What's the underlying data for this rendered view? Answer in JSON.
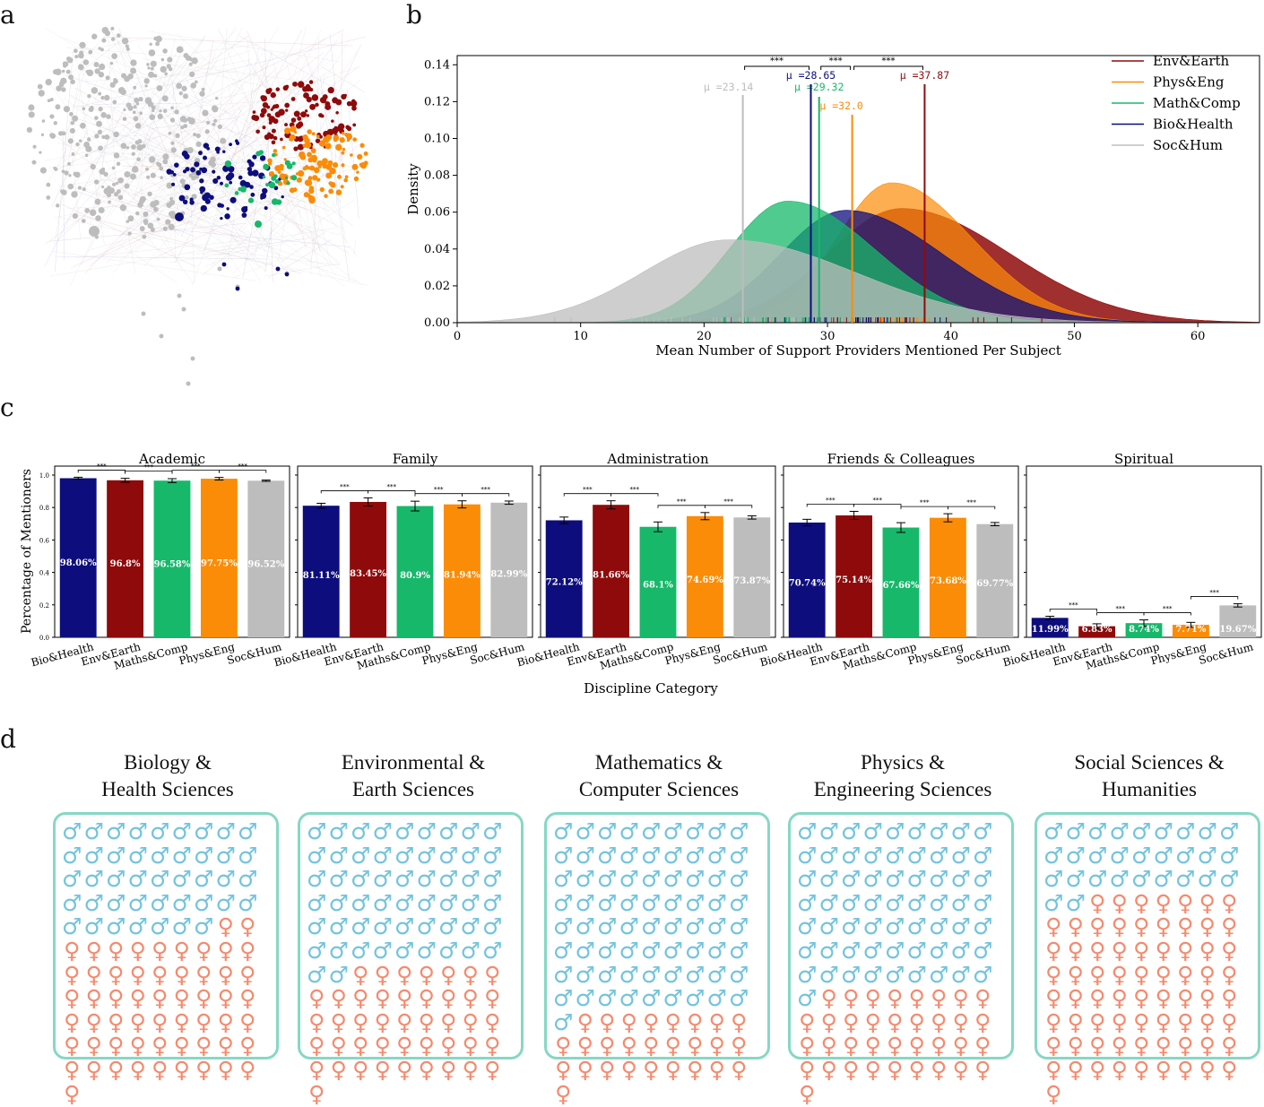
{
  "panel_labels": {
    "a": "a",
    "b": "b",
    "c": "c",
    "d": "d"
  },
  "colors": {
    "bio": "#0d0d7d",
    "env": "#8f0a0a",
    "math": "#17b86a",
    "phys": "#fb8c07",
    "soc": "#bdbdbd",
    "male": "#73c4de",
    "female": "#f58a6e",
    "box_border": "#86d8c4"
  },
  "network": {
    "description_colors": [
      "#bdbdbd",
      "#0d0d7d",
      "#8f0a0a",
      "#fb8c07",
      "#17b86a"
    ]
  },
  "chart_data": [
    {
      "type": "area",
      "panel": "b",
      "xlabel": "Mean Number of Support Providers Mentioned Per Subject",
      "ylabel": "Density",
      "xlim": [
        0,
        65
      ],
      "ylim": [
        0,
        0.145
      ],
      "xticks": [
        0,
        10,
        20,
        30,
        40,
        50,
        60
      ],
      "yticks": [
        "0.00",
        "0.02",
        "0.04",
        "0.06",
        "0.08",
        "0.10",
        "0.12",
        "0.14"
      ],
      "legend_position": "top-right",
      "series": [
        {
          "name": "Env&Earth",
          "key": "env",
          "mean": 37.87,
          "mean_label": "μ =37.87",
          "peak_x": 36,
          "peak_y": 0.062,
          "sd": 7.0
        },
        {
          "name": "Phys&Eng",
          "key": "phys",
          "mean": 32.0,
          "mean_label": "μ =32.0",
          "peak_x": 35.2,
          "peak_y": 0.076,
          "sd": 5.2
        },
        {
          "name": "Math&Comp",
          "key": "math",
          "mean": 29.32,
          "mean_label": "μ =29.32",
          "peak_x": 26.8,
          "peak_y": 0.066,
          "sd": 5.6
        },
        {
          "name": "Bio&Health",
          "key": "bio",
          "mean": 28.65,
          "mean_label": "μ =28.65",
          "peak_x": 31.5,
          "peak_y": 0.061,
          "sd": 6.3
        },
        {
          "name": "Soc&Hum",
          "key": "soc",
          "mean": 23.14,
          "mean_label": "μ =23.14",
          "peak_x": 22,
          "peak_y": 0.045,
          "sd": 8.2
        }
      ],
      "significance": [
        {
          "from": 23.14,
          "to": 28.65,
          "label": "***",
          "level": 0.132
        },
        {
          "from": 29.32,
          "to": 32.0,
          "label": "***",
          "level": 0.132
        },
        {
          "from": 32.0,
          "to": 37.87,
          "label": "***",
          "level": 0.132
        }
      ]
    },
    {
      "type": "bar",
      "panel": "c",
      "xlabel": "Discipline Category",
      "ylabel": "Percentage of Mentioners",
      "categories": [
        "Bio&Health",
        "Env&Earth",
        "Maths&Comp",
        "Phys&Eng",
        "Soc&Hum"
      ],
      "yticks": [
        "0.0",
        "0.2",
        "0.4",
        "0.6",
        "0.8",
        "1.0"
      ],
      "ylim": [
        0,
        1.0
      ],
      "sig_label": "***",
      "subplots": [
        {
          "title": "Academic",
          "values": [
            0.9806,
            0.968,
            0.9658,
            0.9775,
            0.9652
          ],
          "labels": [
            "98.06%",
            "96.8%",
            "96.58%",
            "97.75%",
            "96.52%"
          ],
          "err": [
            0.006,
            0.012,
            0.012,
            0.008,
            0.004
          ],
          "sig_pairs": [
            [
              0,
              1
            ],
            [
              1,
              2
            ],
            [
              2,
              3
            ],
            [
              3,
              4
            ]
          ]
        },
        {
          "title": "Family",
          "values": [
            0.8111,
            0.8345,
            0.809,
            0.8194,
            0.8299
          ],
          "labels": [
            "81.11%",
            "83.45%",
            "80.9%",
            "81.94%",
            "82.99%"
          ],
          "err": [
            0.015,
            0.025,
            0.03,
            0.022,
            0.01
          ],
          "sig_pairs": [
            [
              0,
              1
            ],
            [
              1,
              2
            ],
            [
              2,
              3
            ],
            [
              3,
              4
            ]
          ]
        },
        {
          "title": "Administration",
          "values": [
            0.7212,
            0.8166,
            0.681,
            0.7469,
            0.7387
          ],
          "labels": [
            "72.12%",
            "81.66%",
            "68.1%",
            "74.69%",
            "73.87%"
          ],
          "err": [
            0.02,
            0.025,
            0.03,
            0.022,
            0.01
          ],
          "sig_pairs": [
            [
              0,
              1
            ],
            [
              1,
              2
            ],
            [
              2,
              3
            ],
            [
              3,
              4
            ]
          ]
        },
        {
          "title": "Friends & Colleagues",
          "values": [
            0.7074,
            0.7514,
            0.6766,
            0.7368,
            0.6977
          ],
          "labels": [
            "70.74%",
            "75.14%",
            "67.66%",
            "73.68%",
            "69.77%"
          ],
          "err": [
            0.02,
            0.025,
            0.03,
            0.025,
            0.01
          ],
          "sig_pairs": [
            [
              0,
              1
            ],
            [
              1,
              2
            ],
            [
              2,
              3
            ],
            [
              3,
              4
            ]
          ]
        },
        {
          "title": "Spiritual",
          "values": [
            0.1199,
            0.0683,
            0.0874,
            0.0771,
            0.1967
          ],
          "labels": [
            "11.99%",
            "6.83%",
            "8.74%",
            "7.71%",
            "19.67%"
          ],
          "err": [
            0.01,
            0.015,
            0.02,
            0.015,
            0.01
          ],
          "sig_pairs": [
            [
              0,
              1
            ],
            [
              1,
              2
            ],
            [
              2,
              3
            ],
            [
              3,
              4
            ]
          ]
        }
      ]
    },
    {
      "type": "waffle",
      "panel": "d",
      "grid": "10x10",
      "male_symbol": "♂",
      "female_symbol": "♀",
      "groups": [
        {
          "title_line1": "Biology &",
          "title_line2": "Health Sciences",
          "male": 43,
          "female": 57
        },
        {
          "title_line1": "Environmental &",
          "title_line2": "Earth Sciences",
          "male": 56,
          "female": 44
        },
        {
          "title_line1": "Mathematics &",
          "title_line2": "Computer Sciences",
          "male": 73,
          "female": 27
        },
        {
          "title_line1": "Physics &",
          "title_line2": "Engineering Sciences",
          "male": 64,
          "female": 36
        },
        {
          "title_line1": "Social Sciences &",
          "title_line2": "Humanities",
          "male": 29,
          "female": 71
        }
      ]
    }
  ]
}
